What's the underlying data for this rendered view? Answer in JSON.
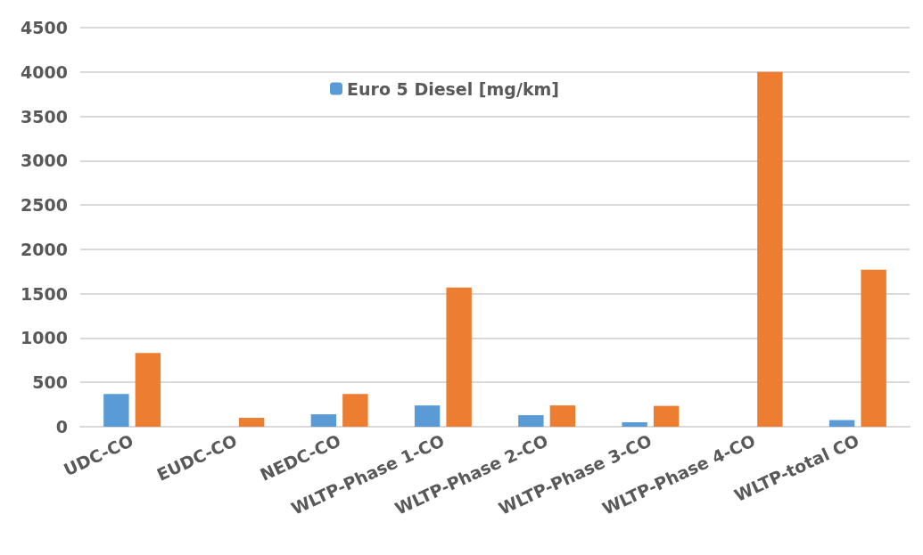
{
  "chart_data": {
    "type": "bar",
    "categories": [
      "UDC-CO",
      "EUDC-CO",
      "NEDC-CO",
      "WLTP-Phase 1-CO",
      "WLTP-Phase 2-CO",
      "WLTP-Phase 3-CO",
      "WLTP-Phase 4-CO",
      "WLTP-total CO"
    ],
    "series": [
      {
        "name": "Euro 5 Diesel [mg/km]",
        "color": "#5b9bd5",
        "values": [
          370,
          0,
          140,
          240,
          130,
          50,
          0,
          75
        ]
      },
      {
        "color": "#ed7d31",
        "values": [
          830,
          100,
          370,
          1570,
          240,
          235,
          4000,
          1770
        ]
      }
    ],
    "ylim": [
      0,
      4500
    ],
    "yticks": [
      0,
      500,
      1000,
      1500,
      2000,
      2500,
      3000,
      3500,
      4000,
      4500
    ],
    "grid": "y",
    "legend": "top"
  }
}
